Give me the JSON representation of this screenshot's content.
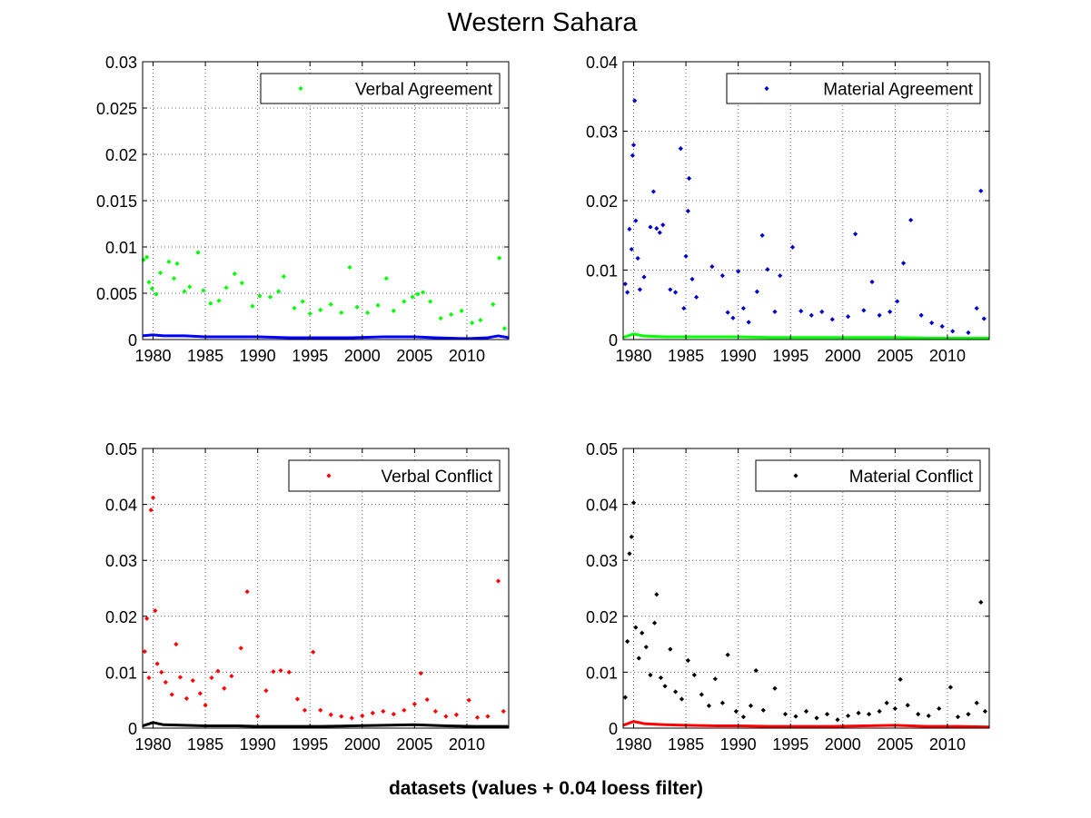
{
  "figure": {
    "title": "Western Sahara",
    "xlabel": "datasets (values + 0.04 loess filter)"
  },
  "chart_data": [
    {
      "type": "scatter",
      "legend_label": "Verbal Agreement",
      "legend_placement": "top-right",
      "grid": true,
      "xlim": [
        1979,
        2014
      ],
      "ylim": [
        0,
        0.03
      ],
      "xticks": [
        1980,
        1985,
        1990,
        1995,
        2000,
        2005,
        2010
      ],
      "yticks": [
        0,
        0.005,
        0.01,
        0.015,
        0.02,
        0.025,
        0.03
      ],
      "ytick_labels": [
        "0",
        "0.005",
        "0.01",
        "0.015",
        "0.02",
        "0.025",
        "0.03"
      ],
      "series_color": "#00ff00",
      "trend_color": "#0000ff",
      "points": [
        [
          1979.1,
          0.0086
        ],
        [
          1979.4,
          0.0089
        ],
        [
          1979.6,
          0.0062
        ],
        [
          1979.9,
          0.0055
        ],
        [
          1980.3,
          0.0049
        ],
        [
          1980.7,
          0.0072
        ],
        [
          1981.5,
          0.0084
        ],
        [
          1982.0,
          0.0066
        ],
        [
          1982.3,
          0.0082
        ],
        [
          1983.0,
          0.0052
        ],
        [
          1983.5,
          0.0057
        ],
        [
          1984.3,
          0.0094
        ],
        [
          1984.8,
          0.0053
        ],
        [
          1985.5,
          0.0039
        ],
        [
          1986.3,
          0.0042
        ],
        [
          1987.0,
          0.0056
        ],
        [
          1987.8,
          0.0071
        ],
        [
          1988.5,
          0.0061
        ],
        [
          1989.5,
          0.0036
        ],
        [
          1990.2,
          0.0047
        ],
        [
          1991.2,
          0.0046
        ],
        [
          1992.0,
          0.0052
        ],
        [
          1992.5,
          0.0068
        ],
        [
          1993.5,
          0.0034
        ],
        [
          1994.3,
          0.0041
        ],
        [
          1995.0,
          0.0028
        ],
        [
          1996.0,
          0.0032
        ],
        [
          1997.0,
          0.0038
        ],
        [
          1998.0,
          0.0029
        ],
        [
          1998.8,
          0.0078
        ],
        [
          1999.5,
          0.0035
        ],
        [
          2000.5,
          0.0029
        ],
        [
          2001.5,
          0.0037
        ],
        [
          2002.3,
          0.0066
        ],
        [
          2003.0,
          0.0031
        ],
        [
          2004.0,
          0.0041
        ],
        [
          2004.8,
          0.0046
        ],
        [
          2005.3,
          0.0049
        ],
        [
          2005.8,
          0.0051
        ],
        [
          2006.5,
          0.0041
        ],
        [
          2007.5,
          0.0023
        ],
        [
          2008.5,
          0.0027
        ],
        [
          2009.5,
          0.0031
        ],
        [
          2010.5,
          0.0018
        ],
        [
          2011.3,
          0.0021
        ],
        [
          2012.5,
          0.0038
        ],
        [
          2013.1,
          0.0088
        ],
        [
          2013.6,
          0.0012
        ]
      ],
      "trend": [
        [
          1979,
          0.0004
        ],
        [
          1980,
          0.0005
        ],
        [
          1981,
          0.0004
        ],
        [
          1983,
          0.0004
        ],
        [
          1985,
          0.0003
        ],
        [
          1988,
          0.0003
        ],
        [
          1990,
          0.0003
        ],
        [
          1993,
          0.0002
        ],
        [
          1996,
          0.0002
        ],
        [
          1999,
          0.0002
        ],
        [
          2002,
          0.0003
        ],
        [
          2005,
          0.0003
        ],
        [
          2007,
          0.0002
        ],
        [
          2010,
          0.0001
        ],
        [
          2012,
          0.0002
        ],
        [
          2013,
          0.0004
        ],
        [
          2014,
          0.0002
        ]
      ]
    },
    {
      "type": "scatter",
      "legend_label": "Material Agreement",
      "legend_placement": "top-right",
      "grid": true,
      "xlim": [
        1979,
        2014
      ],
      "ylim": [
        0,
        0.04
      ],
      "xticks": [
        1980,
        1985,
        1990,
        1995,
        2000,
        2005,
        2010
      ],
      "yticks": [
        0,
        0.01,
        0.02,
        0.03,
        0.04
      ],
      "ytick_labels": [
        "0",
        "0.01",
        "0.02",
        "0.03",
        "0.04"
      ],
      "series_color": "#0000cc",
      "trend_color": "#00ff00",
      "points": [
        [
          1979.2,
          0.008
        ],
        [
          1979.4,
          0.0068
        ],
        [
          1979.6,
          0.0159
        ],
        [
          1979.8,
          0.013
        ],
        [
          1979.9,
          0.0265
        ],
        [
          1980.0,
          0.028
        ],
        [
          1980.1,
          0.0344
        ],
        [
          1980.2,
          0.0171
        ],
        [
          1980.4,
          0.0117
        ],
        [
          1980.6,
          0.0072
        ],
        [
          1981.0,
          0.009
        ],
        [
          1981.6,
          0.0162
        ],
        [
          1981.9,
          0.0213
        ],
        [
          1982.2,
          0.016
        ],
        [
          1982.5,
          0.0154
        ],
        [
          1982.8,
          0.0165
        ],
        [
          1983.5,
          0.0072
        ],
        [
          1984.0,
          0.0068
        ],
        [
          1984.5,
          0.0275
        ],
        [
          1984.8,
          0.0045
        ],
        [
          1985.0,
          0.012
        ],
        [
          1985.2,
          0.0185
        ],
        [
          1985.3,
          0.0232
        ],
        [
          1985.6,
          0.0087
        ],
        [
          1986.0,
          0.0061
        ],
        [
          1987.5,
          0.0105
        ],
        [
          1988.5,
          0.0092
        ],
        [
          1989.0,
          0.0039
        ],
        [
          1989.5,
          0.0031
        ],
        [
          1990.0,
          0.0098
        ],
        [
          1990.5,
          0.0045
        ],
        [
          1991.0,
          0.0025
        ],
        [
          1991.8,
          0.0069
        ],
        [
          1992.3,
          0.015
        ],
        [
          1992.8,
          0.0101
        ],
        [
          1993.5,
          0.004
        ],
        [
          1994.0,
          0.0092
        ],
        [
          1995.2,
          0.0133
        ],
        [
          1996.0,
          0.0041
        ],
        [
          1997.0,
          0.0035
        ],
        [
          1998.0,
          0.004
        ],
        [
          1999.0,
          0.0029
        ],
        [
          2000.5,
          0.0033
        ],
        [
          2001.2,
          0.0152
        ],
        [
          2002.0,
          0.0042
        ],
        [
          2002.8,
          0.0083
        ],
        [
          2003.5,
          0.0035
        ],
        [
          2004.5,
          0.004
        ],
        [
          2005.2,
          0.0055
        ],
        [
          2005.8,
          0.011
        ],
        [
          2006.5,
          0.0172
        ],
        [
          2007.5,
          0.0035
        ],
        [
          2008.5,
          0.0024
        ],
        [
          2009.5,
          0.0019
        ],
        [
          2010.5,
          0.0012
        ],
        [
          2012.0,
          0.001
        ],
        [
          2012.8,
          0.0045
        ],
        [
          2013.2,
          0.0214
        ],
        [
          2013.5,
          0.003
        ]
      ],
      "trend": [
        [
          1979,
          0.0003
        ],
        [
          1980,
          0.0008
        ],
        [
          1981,
          0.0005
        ],
        [
          1983,
          0.0004
        ],
        [
          1985,
          0.0004
        ],
        [
          1988,
          0.0004
        ],
        [
          1990,
          0.0004
        ],
        [
          1993,
          0.0003
        ],
        [
          1996,
          0.0003
        ],
        [
          1999,
          0.0003
        ],
        [
          2002,
          0.0003
        ],
        [
          2005,
          0.0003
        ],
        [
          2008,
          0.0002
        ],
        [
          2011,
          0.0002
        ],
        [
          2014,
          0.0002
        ]
      ]
    },
    {
      "type": "scatter",
      "legend_label": "Verbal Conflict",
      "legend_placement": "top-right",
      "grid": true,
      "xlim": [
        1979,
        2014
      ],
      "ylim": [
        0,
        0.05
      ],
      "xticks": [
        1980,
        1985,
        1990,
        1995,
        2000,
        2005,
        2010
      ],
      "yticks": [
        0,
        0.01,
        0.02,
        0.03,
        0.04,
        0.05
      ],
      "ytick_labels": [
        "0",
        "0.01",
        "0.02",
        "0.03",
        "0.04",
        "0.05"
      ],
      "series_color": "#ff0000",
      "trend_color": "#000000",
      "points": [
        [
          1979.2,
          0.0137
        ],
        [
          1979.4,
          0.0196
        ],
        [
          1979.6,
          0.009
        ],
        [
          1979.8,
          0.039
        ],
        [
          1980.0,
          0.0412
        ],
        [
          1980.2,
          0.021
        ],
        [
          1980.4,
          0.0115
        ],
        [
          1980.8,
          0.01
        ],
        [
          1981.2,
          0.0082
        ],
        [
          1981.8,
          0.006
        ],
        [
          1982.2,
          0.015
        ],
        [
          1982.6,
          0.0091
        ],
        [
          1983.2,
          0.0053
        ],
        [
          1983.8,
          0.0085
        ],
        [
          1984.5,
          0.0062
        ],
        [
          1985.0,
          0.0041
        ],
        [
          1985.6,
          0.009
        ],
        [
          1986.2,
          0.0102
        ],
        [
          1986.8,
          0.0071
        ],
        [
          1987.5,
          0.0093
        ],
        [
          1988.4,
          0.0143
        ],
        [
          1989.0,
          0.0244
        ],
        [
          1990.0,
          0.0021
        ],
        [
          1990.8,
          0.0067
        ],
        [
          1991.5,
          0.0101
        ],
        [
          1992.2,
          0.0103
        ],
        [
          1993.0,
          0.01
        ],
        [
          1993.8,
          0.0052
        ],
        [
          1994.5,
          0.0032
        ],
        [
          1995.3,
          0.0136
        ],
        [
          1996.0,
          0.0032
        ],
        [
          1997.0,
          0.0024
        ],
        [
          1998.0,
          0.0021
        ],
        [
          1999.0,
          0.0018
        ],
        [
          2000.0,
          0.0022
        ],
        [
          2001.0,
          0.0027
        ],
        [
          2002.0,
          0.003
        ],
        [
          2003.0,
          0.0025
        ],
        [
          2004.0,
          0.0032
        ],
        [
          2005.0,
          0.0043
        ],
        [
          2005.6,
          0.0098
        ],
        [
          2006.2,
          0.0051
        ],
        [
          2007.0,
          0.003
        ],
        [
          2008.0,
          0.0021
        ],
        [
          2009.0,
          0.0024
        ],
        [
          2010.2,
          0.005
        ],
        [
          2011.0,
          0.0019
        ],
        [
          2012.0,
          0.0021
        ],
        [
          2013.0,
          0.0263
        ],
        [
          2013.5,
          0.003
        ]
      ],
      "trend": [
        [
          1979,
          0.0004
        ],
        [
          1980,
          0.001
        ],
        [
          1981,
          0.0006
        ],
        [
          1983,
          0.0005
        ],
        [
          1985,
          0.0004
        ],
        [
          1988,
          0.0004
        ],
        [
          1990,
          0.0003
        ],
        [
          1993,
          0.0003
        ],
        [
          1996,
          0.0003
        ],
        [
          1999,
          0.0004
        ],
        [
          2002,
          0.0005
        ],
        [
          2005,
          0.0006
        ],
        [
          2008,
          0.0004
        ],
        [
          2011,
          0.0003
        ],
        [
          2014,
          0.0003
        ]
      ]
    },
    {
      "type": "scatter",
      "legend_label": "Material Conflict",
      "legend_placement": "top-right",
      "grid": true,
      "xlim": [
        1979,
        2014
      ],
      "ylim": [
        0,
        0.05
      ],
      "xticks": [
        1980,
        1985,
        1990,
        1995,
        2000,
        2005,
        2010
      ],
      "yticks": [
        0,
        0.01,
        0.02,
        0.03,
        0.04,
        0.05
      ],
      "ytick_labels": [
        "0",
        "0.01",
        "0.02",
        "0.03",
        "0.04",
        "0.05"
      ],
      "series_color": "#000000",
      "trend_color": "#ff0000",
      "points": [
        [
          1979.2,
          0.0055
        ],
        [
          1979.4,
          0.0155
        ],
        [
          1979.6,
          0.0312
        ],
        [
          1979.8,
          0.0342
        ],
        [
          1980.0,
          0.0403
        ],
        [
          1980.2,
          0.018
        ],
        [
          1980.5,
          0.0125
        ],
        [
          1980.8,
          0.017
        ],
        [
          1981.2,
          0.0145
        ],
        [
          1981.6,
          0.0095
        ],
        [
          1982.0,
          0.0188
        ],
        [
          1982.2,
          0.0239
        ],
        [
          1982.6,
          0.009
        ],
        [
          1983.0,
          0.0075
        ],
        [
          1983.5,
          0.0141
        ],
        [
          1984.0,
          0.0065
        ],
        [
          1984.6,
          0.0052
        ],
        [
          1985.2,
          0.0121
        ],
        [
          1985.8,
          0.0095
        ],
        [
          1986.5,
          0.006
        ],
        [
          1987.2,
          0.004
        ],
        [
          1987.8,
          0.0088
        ],
        [
          1988.5,
          0.0045
        ],
        [
          1989.0,
          0.0131
        ],
        [
          1989.8,
          0.003
        ],
        [
          1990.5,
          0.002
        ],
        [
          1991.2,
          0.004
        ],
        [
          1991.7,
          0.0103
        ],
        [
          1992.4,
          0.0032
        ],
        [
          1993.5,
          0.0071
        ],
        [
          1994.5,
          0.0025
        ],
        [
          1995.5,
          0.0021
        ],
        [
          1996.5,
          0.003
        ],
        [
          1997.5,
          0.0018
        ],
        [
          1998.5,
          0.0025
        ],
        [
          1999.5,
          0.0015
        ],
        [
          2000.5,
          0.0022
        ],
        [
          2001.5,
          0.0027
        ],
        [
          2002.5,
          0.0025
        ],
        [
          2003.5,
          0.003
        ],
        [
          2004.2,
          0.0045
        ],
        [
          2005.0,
          0.0035
        ],
        [
          2005.5,
          0.0087
        ],
        [
          2006.2,
          0.0041
        ],
        [
          2007.2,
          0.0025
        ],
        [
          2008.2,
          0.0022
        ],
        [
          2009.2,
          0.0035
        ],
        [
          2010.3,
          0.0073
        ],
        [
          2011.0,
          0.002
        ],
        [
          2012.0,
          0.0025
        ],
        [
          2012.8,
          0.0045
        ],
        [
          2013.2,
          0.0225
        ],
        [
          2013.6,
          0.003
        ]
      ],
      "trend": [
        [
          1979,
          0.0005
        ],
        [
          1980,
          0.0012
        ],
        [
          1981,
          0.0008
        ],
        [
          1983,
          0.0006
        ],
        [
          1985,
          0.0005
        ],
        [
          1988,
          0.0004
        ],
        [
          1990,
          0.0004
        ],
        [
          1993,
          0.0003
        ],
        [
          1996,
          0.0003
        ],
        [
          1999,
          0.0003
        ],
        [
          2002,
          0.0004
        ],
        [
          2005,
          0.0005
        ],
        [
          2008,
          0.0003
        ],
        [
          2011,
          0.0003
        ],
        [
          2014,
          0.0002
        ]
      ]
    }
  ]
}
